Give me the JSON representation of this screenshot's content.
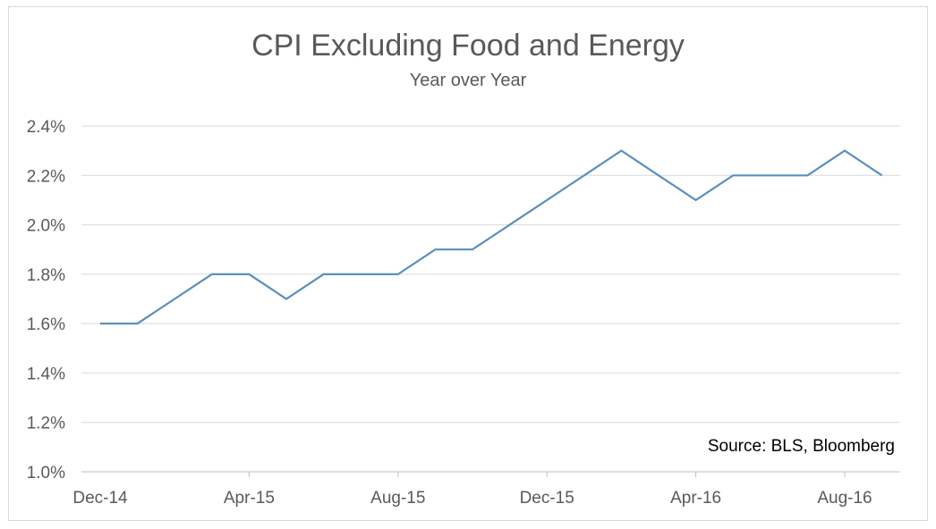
{
  "chart_data": {
    "type": "line",
    "title": "CPI Excluding Food and Energy",
    "subtitle": "Year over Year",
    "annotation": "Source: BLS, Bloomberg",
    "ylim": [
      1.0,
      2.4
    ],
    "yticks": [
      1.0,
      1.2,
      1.4,
      1.6,
      1.8,
      2.0,
      2.2,
      2.4
    ],
    "yticklabels": [
      "1.0%",
      "1.2%",
      "1.4%",
      "1.6%",
      "1.8%",
      "2.0%",
      "2.2%",
      "2.4%"
    ],
    "xticklabels": [
      {
        "label": "Dec-14",
        "x": "Dec-14"
      },
      {
        "label": "Apr-15",
        "x": "Apr-15"
      },
      {
        "label": "Aug-15",
        "x": "Aug-15"
      },
      {
        "label": "Dec-15",
        "x": "Dec-15"
      },
      {
        "label": "Apr-16",
        "x": "Apr-16"
      },
      {
        "label": "Aug-16",
        "x": "Aug-16"
      }
    ],
    "x": [
      "Dec-14",
      "Jan-15",
      "Feb-15",
      "Mar-15",
      "Apr-15",
      "May-15",
      "Jun-15",
      "Jul-15",
      "Aug-15",
      "Sep-15",
      "Oct-15",
      "Nov-15",
      "Dec-15",
      "Jan-16",
      "Feb-16",
      "Mar-16",
      "Apr-16",
      "May-16",
      "Jun-16",
      "Jul-16",
      "Aug-16",
      "Sep-16"
    ],
    "series": [
      {
        "values": [
          1.6,
          1.6,
          1.7,
          1.8,
          1.8,
          1.7,
          1.8,
          1.8,
          1.8,
          1.9,
          1.9,
          2.0,
          2.1,
          2.2,
          2.3,
          2.2,
          2.1,
          2.2,
          2.2,
          2.2,
          2.3,
          2.2
        ],
        "color": "#5b8fbf"
      }
    ],
    "grid": true,
    "gridColor": "#d9d9d9",
    "axisColor": "#bfbfbf"
  }
}
